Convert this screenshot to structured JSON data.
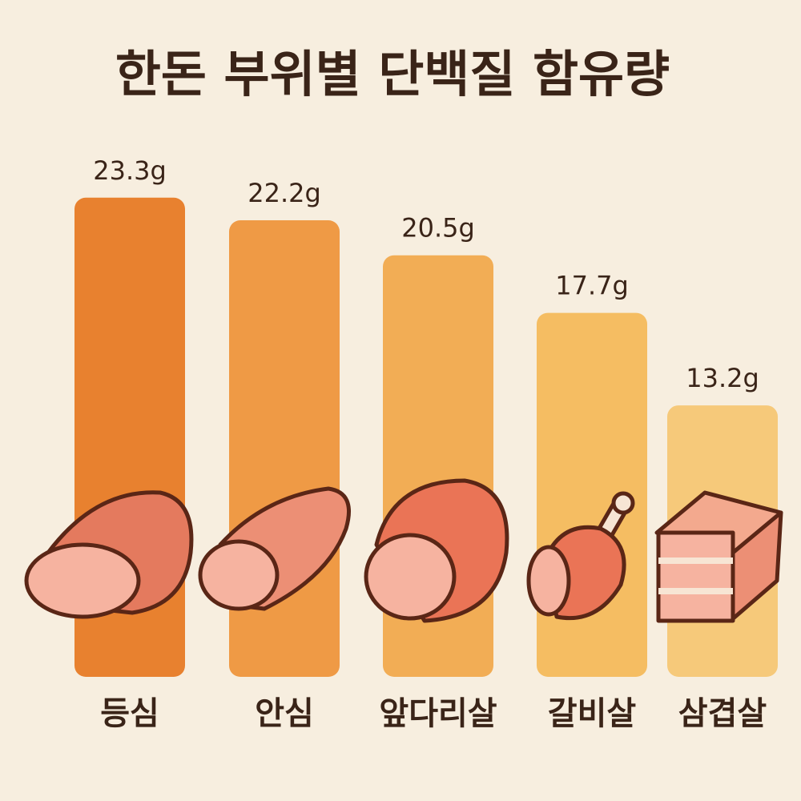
{
  "chart_data": {
    "type": "bar",
    "title": "한돈 부위별 단백질 함유량",
    "categories": [
      "등심",
      "안심",
      "앞다리살",
      "갈비살",
      "삼겹살"
    ],
    "values": [
      23.3,
      22.2,
      20.5,
      17.7,
      13.2
    ],
    "value_labels": [
      "23.3g",
      "22.2g",
      "20.5g",
      "17.7g",
      "13.2g"
    ],
    "colors": [
      "#e8812f",
      "#ef9a45",
      "#f2ad55",
      "#f5bd62",
      "#f6c97a"
    ],
    "ylim": [
      0,
      24.5
    ]
  }
}
